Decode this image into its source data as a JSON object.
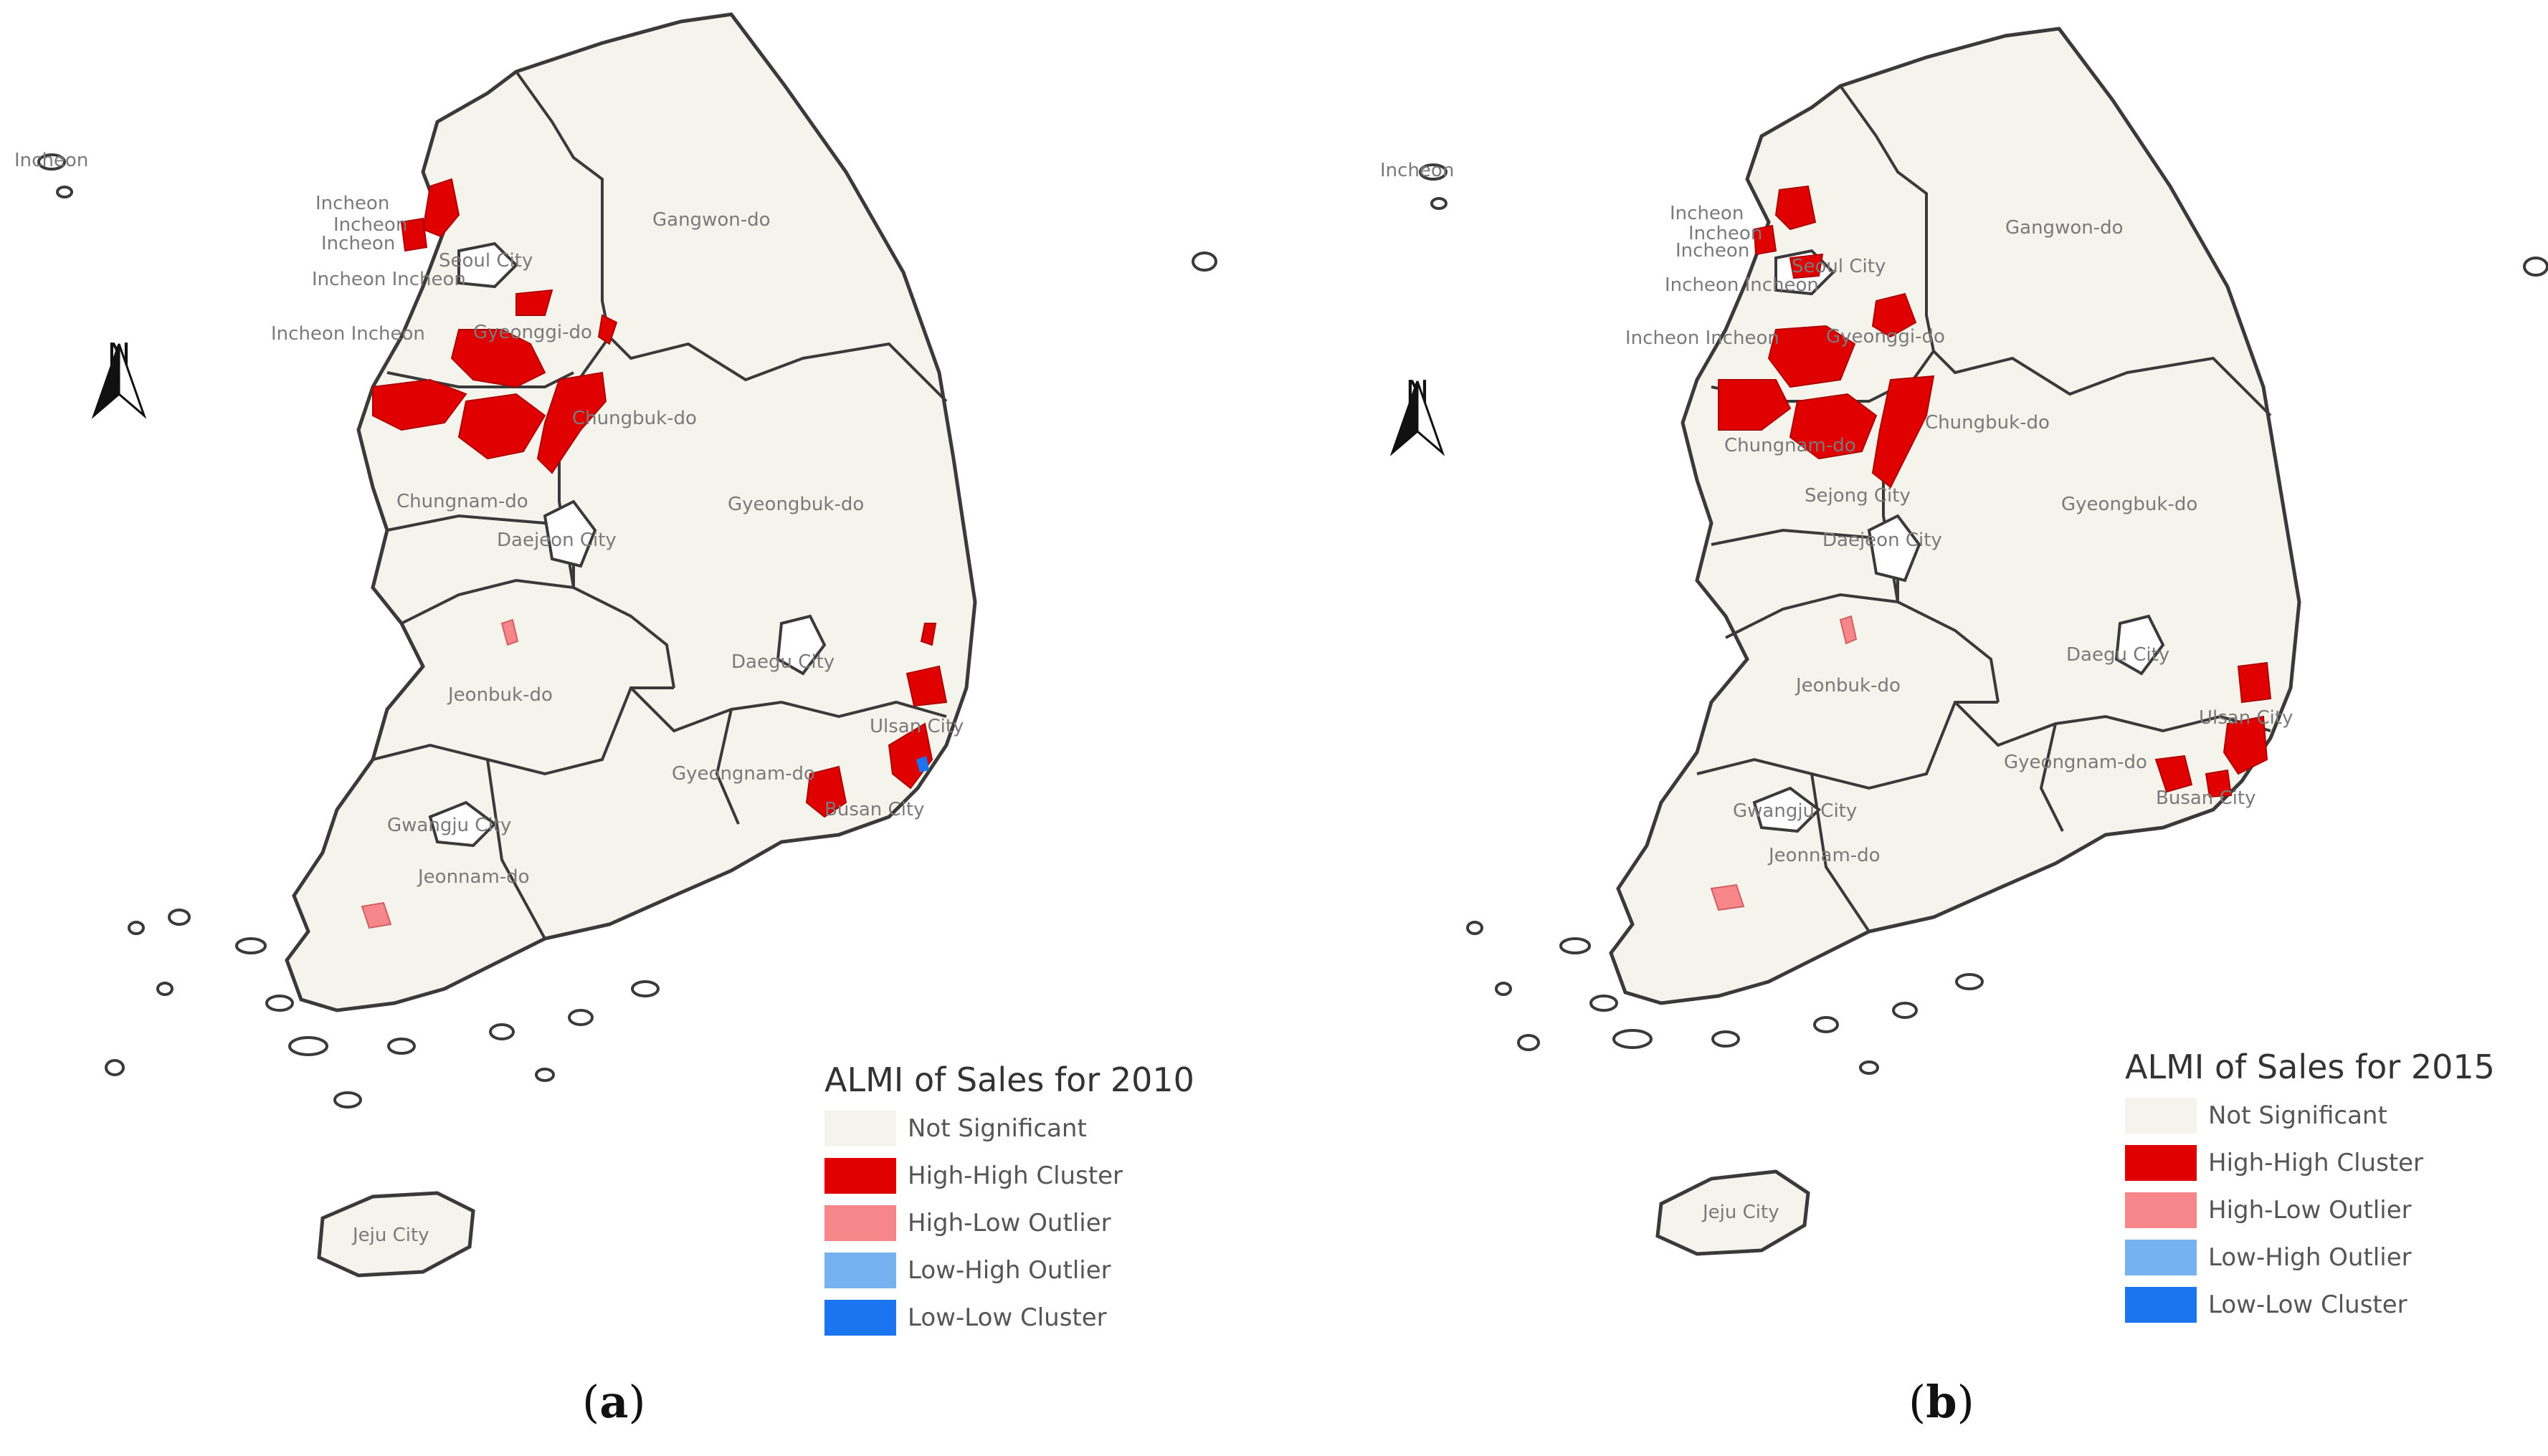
{
  "panels": [
    {
      "id": "a",
      "caption": "a",
      "legend": {
        "title": "ALMI of Sales for 2010",
        "items": [
          {
            "label": "Not Significant",
            "color": "#f4f3ec"
          },
          {
            "label": "High-High Cluster",
            "color": "#e10000"
          },
          {
            "label": "High-Low Outlier",
            "color": "#f6868a"
          },
          {
            "label": "Low-High Outlier",
            "color": "#76b1f2"
          },
          {
            "label": "Low-Low Cluster",
            "color": "#1b74f0"
          }
        ]
      },
      "north": "N",
      "labels": [
        "Incheon",
        "Incheon",
        "Incheon",
        "Incheon",
        "Seoul City",
        "Incheon Incheon",
        "Incheon Incheon",
        "Gyeonggi-do",
        "Gangwon-do",
        "Chungbuk-do",
        "Chungnam-do",
        "Daejeon City",
        "Gyeongbuk-do",
        "Daegu City",
        "Jeonbuk-do",
        "Ulsan City",
        "Gyeongnam-do",
        "Busan City",
        "Gwangju City",
        "Jeonnam-do",
        "Jeju City"
      ]
    },
    {
      "id": "b",
      "caption": "b",
      "legend": {
        "title": "ALMI of Sales for 2015",
        "items": [
          {
            "label": "Not Significant",
            "color": "#f4f3ec"
          },
          {
            "label": "High-High Cluster",
            "color": "#e10000"
          },
          {
            "label": "High-Low Outlier",
            "color": "#f6868a"
          },
          {
            "label": "Low-High Outlier",
            "color": "#76b1f2"
          },
          {
            "label": "Low-Low Cluster",
            "color": "#1b74f0"
          }
        ]
      },
      "north": "N",
      "labels": [
        "Incheon",
        "Incheon",
        "Incheon",
        "Incheon",
        "Seoul City",
        "Incheon Incheon",
        "Incheon Incheon",
        "Gyeonggi-do",
        "Gangwon-do",
        "Chungnam-do",
        "Chungbuk-do",
        "Sejong City",
        "Daejeon City",
        "Gyeongbuk-do",
        "Daegu City",
        "Jeonbuk-do",
        "Ulsan City",
        "Gyeongnam-do",
        "Busan City",
        "Gwangju City",
        "Jeonnam-do",
        "Jeju City"
      ]
    }
  ],
  "colors": {
    "land": "#f4f3ec",
    "border": "#3a3a3a",
    "high_high": "#e10000",
    "high_low": "#f6868a",
    "low_low": "#1b74f0"
  }
}
